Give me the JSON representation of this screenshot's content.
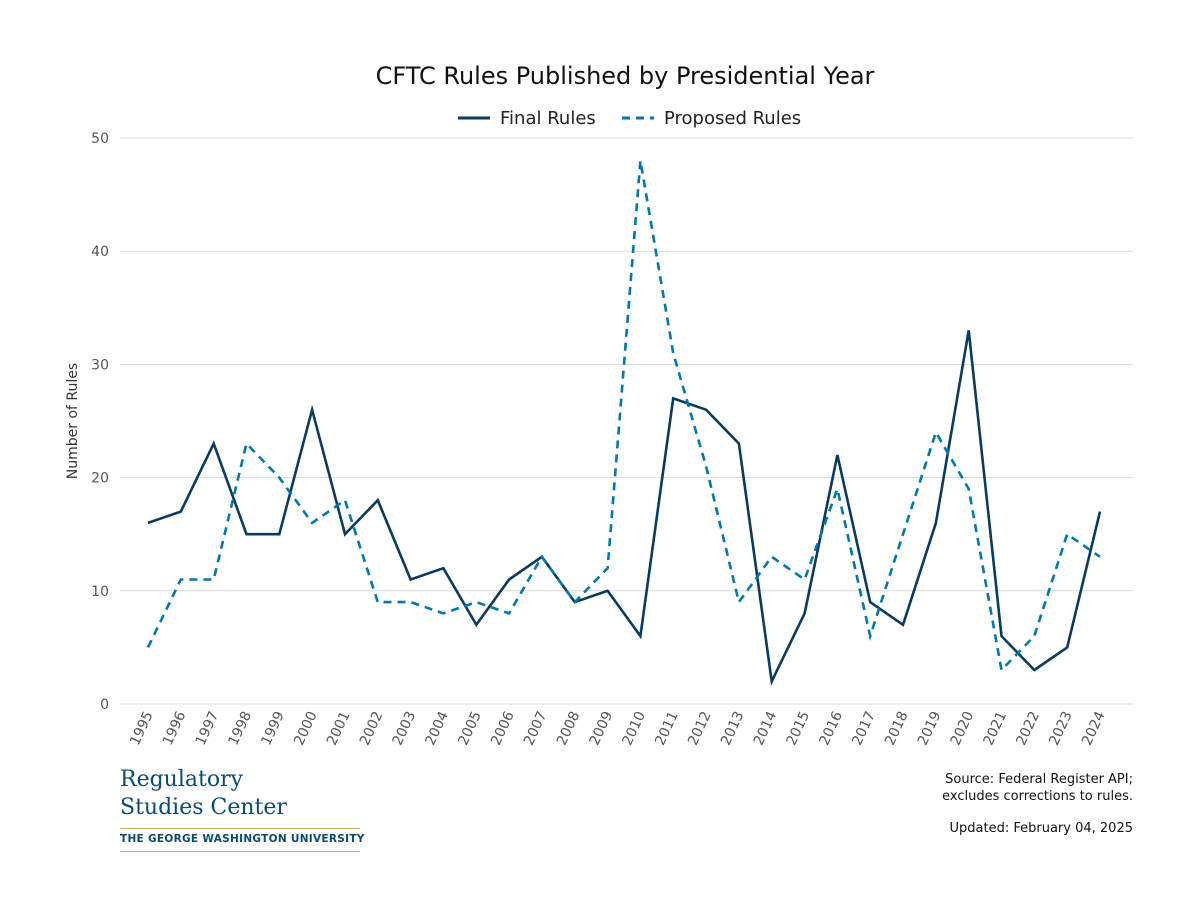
{
  "chart_data": {
    "type": "line",
    "title": "CFTC Rules Published by Presidential Year",
    "xlabel": "",
    "ylabel": "Number of Rules",
    "ylim": [
      0,
      50
    ],
    "yticks": [
      0,
      10,
      20,
      30,
      40,
      50
    ],
    "grid": true,
    "legend_position": "top-center",
    "x": [
      "1995",
      "1996",
      "1997",
      "1998",
      "1999",
      "2000",
      "2001",
      "2002",
      "2003",
      "2004",
      "2005",
      "2006",
      "2007",
      "2008",
      "2009",
      "2010",
      "2011",
      "2012",
      "2013",
      "2014",
      "2015",
      "2016",
      "2017",
      "2018",
      "2019",
      "2020",
      "2021",
      "2022",
      "2023",
      "2024"
    ],
    "series": [
      {
        "name": "Final Rules",
        "style": "solid",
        "color": "#0b3b5c",
        "values": [
          16,
          17,
          23,
          15,
          15,
          26,
          15,
          18,
          11,
          12,
          7,
          11,
          13,
          9,
          10,
          6,
          27,
          26,
          23,
          2,
          8,
          22,
          9,
          7,
          16,
          33,
          6,
          3,
          5,
          17
        ]
      },
      {
        "name": "Proposed Rules",
        "style": "dashed",
        "color": "#0077aa",
        "values": [
          5,
          11,
          11,
          23,
          20,
          16,
          18,
          9,
          9,
          8,
          9,
          8,
          13,
          9,
          12,
          48,
          31,
          21,
          9,
          13,
          11,
          19,
          6,
          15,
          24,
          19,
          3,
          6,
          15,
          13
        ]
      }
    ]
  },
  "footer": {
    "logo_line1": "Regulatory",
    "logo_line2": "Studies Center",
    "logo_university": "THE GEORGE WASHINGTON UNIVERSITY",
    "source_line1": "Source: Federal Register API;",
    "source_line2": "excludes corrections to rules.",
    "updated": "Updated: February 04, 2025"
  }
}
